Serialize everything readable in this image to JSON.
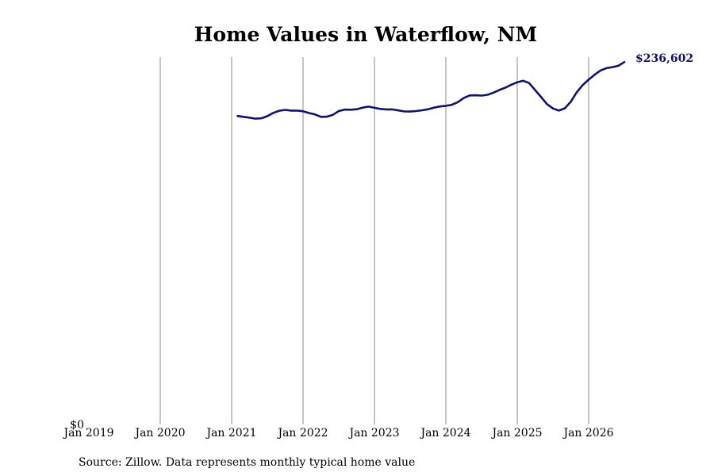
{
  "chart_data": {
    "type": "line",
    "title": "Home Values in Waterflow, NM",
    "xlabel": "",
    "ylabel": "",
    "x_ticks": [
      "Jan 2019",
      "Jan 2020",
      "Jan 2021",
      "Jan 2022",
      "Jan 2023",
      "Jan 2024",
      "Jan 2025",
      "Jan 2026"
    ],
    "x_range": [
      "2019-01",
      "2026-09"
    ],
    "y_tick_labels": [
      "$0"
    ],
    "ylim": [
      0,
      245000
    ],
    "grid": "vertical at each January",
    "legend": "none",
    "line_color": "#12126a",
    "series": [
      {
        "x": [
          "2021-02",
          "2021-03",
          "2021-04",
          "2021-05",
          "2021-06",
          "2021-07",
          "2021-08",
          "2021-09",
          "2021-10",
          "2021-11",
          "2021-12",
          "2022-01",
          "2022-02",
          "2022-03",
          "2022-04",
          "2022-05",
          "2022-06",
          "2022-07",
          "2022-08",
          "2022-09",
          "2022-10",
          "2022-11",
          "2022-12",
          "2023-01",
          "2023-02",
          "2023-03",
          "2023-04",
          "2023-05",
          "2023-06",
          "2023-07",
          "2023-08",
          "2023-09",
          "2023-10",
          "2023-11",
          "2023-12",
          "2024-01",
          "2024-02",
          "2024-03",
          "2024-04",
          "2024-05",
          "2024-06",
          "2024-07",
          "2024-08",
          "2024-09",
          "2024-10",
          "2024-11",
          "2024-12",
          "2025-01",
          "2025-02",
          "2025-03",
          "2025-04",
          "2025-05",
          "2025-06",
          "2025-07",
          "2025-08",
          "2025-09",
          "2025-10",
          "2025-11",
          "2025-12",
          "2026-01",
          "2026-02",
          "2026-03",
          "2026-04",
          "2026-05",
          "2026-06",
          "2026-07"
        ],
        "values": [
          201400,
          200800,
          200300,
          199600,
          199900,
          201300,
          203400,
          204800,
          205400,
          204900,
          204900,
          204500,
          203300,
          202400,
          200800,
          200900,
          202100,
          204600,
          205600,
          205500,
          205800,
          206800,
          207500,
          206700,
          206000,
          205700,
          205700,
          205000,
          204400,
          204300,
          204600,
          205100,
          205800,
          206800,
          207600,
          208000,
          208700,
          210400,
          213100,
          214800,
          214900,
          214700,
          215200,
          216600,
          218400,
          219900,
          221800,
          223400,
          224400,
          222900,
          218300,
          213800,
          209100,
          206300,
          204900,
          206400,
          210700,
          216900,
          221600,
          225100,
          228300,
          231100,
          232600,
          233300,
          234200,
          236602
        ],
        "end_label": "$236,602"
      }
    ],
    "source_note": "Source: Zillow. Data represents monthly typical home value"
  }
}
